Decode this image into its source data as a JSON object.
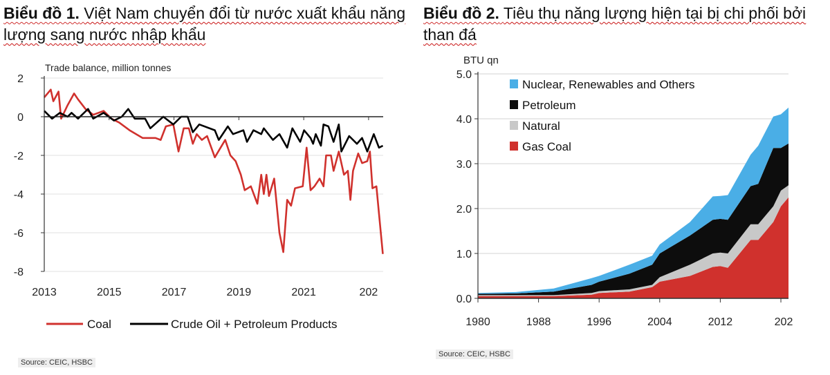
{
  "chart_data": [
    {
      "type": "line",
      "title_prefix": "Biểu đồ 1.",
      "title": "Việt Nam chuyển đổi từ nước xuất khẩu năng lượng sang nước nhập khẩu",
      "ylabel": "Trade balance, million tonnes",
      "xlabel": "",
      "ylim": [
        -8,
        2
      ],
      "xlim": [
        2013,
        2023.45
      ],
      "yticks": [
        "2",
        "0",
        "-2",
        "-4",
        "-6",
        "-8"
      ],
      "xticks": [
        "2013",
        "2015",
        "2017",
        "2019",
        "2021",
        "202"
      ],
      "grid": true,
      "legend": "bottom",
      "source": "Source: CEIC, HSBC",
      "series": [
        {
          "name": "Coal",
          "color": "#d0312d",
          "x": [
            2013.0,
            2013.2,
            2013.28,
            2013.44,
            2013.52,
            2013.72,
            2013.92,
            2014.04,
            2014.27,
            2014.51,
            2014.83,
            2015.07,
            2015.31,
            2015.63,
            2016.03,
            2016.43,
            2016.59,
            2016.75,
            2016.98,
            2017.14,
            2017.3,
            2017.46,
            2017.58,
            2017.7,
            2017.86,
            2018.02,
            2018.26,
            2018.58,
            2018.74,
            2018.9,
            2019.06,
            2019.18,
            2019.37,
            2019.57,
            2019.69,
            2019.77,
            2019.85,
            2019.93,
            2020.09,
            2020.25,
            2020.37,
            2020.49,
            2020.61,
            2020.73,
            2020.97,
            2021.09,
            2021.21,
            2021.33,
            2021.49,
            2021.61,
            2021.69,
            2021.84,
            2021.92,
            2022.08,
            2022.24,
            2022.36,
            2022.44,
            2022.52,
            2022.68,
            2022.8,
            2022.96,
            2023.04,
            2023.12,
            2023.24,
            2023.32,
            2023.44
          ],
          "y": [
            1.0,
            1.4,
            0.8,
            1.3,
            -0.1,
            0.6,
            1.2,
            0.9,
            0.4,
            0.1,
            0.3,
            -0.1,
            -0.3,
            -0.7,
            -1.1,
            -1.1,
            -1.2,
            -0.5,
            -0.4,
            -1.8,
            -0.6,
            -0.6,
            -1.4,
            -0.9,
            -1.2,
            -1.0,
            -2.1,
            -1.2,
            -2.0,
            -2.3,
            -3.0,
            -3.8,
            -3.6,
            -4.5,
            -3.0,
            -4.0,
            -3.0,
            -4.1,
            -3.2,
            -6.0,
            -7.0,
            -4.3,
            -4.6,
            -3.7,
            -3.6,
            -1.6,
            -3.8,
            -3.6,
            -3.2,
            -3.6,
            -2.0,
            -2.0,
            -2.8,
            -1.8,
            -3.0,
            -2.8,
            -4.3,
            -2.8,
            -1.9,
            -2.4,
            -2.3,
            -1.8,
            -3.7,
            -3.6,
            -5.0,
            -7.1
          ]
        },
        {
          "name": "Crude Oil + Petroleum Products",
          "color": "#000000",
          "x": [
            2013.0,
            2013.24,
            2013.48,
            2013.72,
            2013.84,
            2014.04,
            2014.35,
            2014.51,
            2014.83,
            2015.15,
            2015.39,
            2015.59,
            2015.79,
            2016.11,
            2016.27,
            2016.67,
            2016.98,
            2017.22,
            2017.42,
            2017.58,
            2017.78,
            2018.26,
            2018.38,
            2018.66,
            2018.82,
            2019.14,
            2019.25,
            2019.45,
            2019.69,
            2019.77,
            2020.05,
            2020.25,
            2020.49,
            2020.65,
            2020.89,
            2021.01,
            2021.21,
            2021.29,
            2021.37,
            2021.53,
            2021.61,
            2021.76,
            2021.92,
            2022.08,
            2022.16,
            2022.4,
            2022.64,
            2022.8,
            2022.96,
            2023.16,
            2023.32,
            2023.44
          ],
          "y": [
            0.3,
            -0.1,
            0.2,
            0.0,
            0.2,
            -0.1,
            0.4,
            -0.1,
            0.2,
            -0.2,
            0.0,
            0.4,
            -0.1,
            -0.1,
            -0.6,
            0.0,
            -0.4,
            0.0,
            0.0,
            -0.8,
            -0.4,
            -0.7,
            -1.2,
            -0.5,
            -0.9,
            -0.7,
            -1.3,
            -0.7,
            -0.9,
            -0.6,
            -1.2,
            -0.9,
            -1.6,
            -0.6,
            -1.3,
            -0.7,
            -1.1,
            -1.4,
            -0.9,
            -1.5,
            -0.4,
            -0.5,
            -1.3,
            -0.4,
            -1.8,
            -1.0,
            -1.4,
            -1.1,
            -1.8,
            -0.9,
            -1.6,
            -1.5
          ]
        }
      ]
    },
    {
      "type": "area",
      "stacked": true,
      "title_prefix": "Biểu đồ 2.",
      "title": "Tiêu thụ năng lượng hiện tại bị chi phối bởi than đá",
      "ylabel": "BTU qn",
      "xlabel": "",
      "ylim": [
        0,
        5
      ],
      "xlim": [
        1980,
        2021
      ],
      "yticks": [
        "5.0",
        "4.0",
        "3.0",
        "2.0",
        "1.0",
        "0.0"
      ],
      "xticks": [
        "1980",
        "1988",
        "1996",
        "2004",
        "2012",
        "202"
      ],
      "grid": true,
      "legend": "top-left",
      "source": "Source: CEIC, HSBC",
      "x": [
        1980,
        1985,
        1990,
        1995,
        1996,
        2000,
        2003,
        2004,
        2008,
        2011,
        2012,
        2013,
        2016,
        2017,
        2019,
        2020,
        2021
      ],
      "series": [
        {
          "name": "Gas Coal",
          "color": "#d0312d",
          "values": [
            0.05,
            0.05,
            0.05,
            0.08,
            0.12,
            0.15,
            0.25,
            0.37,
            0.5,
            0.7,
            0.72,
            0.68,
            1.3,
            1.3,
            1.7,
            2.05,
            2.25
          ]
        },
        {
          "name": "Natural",
          "color": "#c8c8c8",
          "values": [
            0.02,
            0.02,
            0.02,
            0.04,
            0.04,
            0.05,
            0.05,
            0.1,
            0.25,
            0.3,
            0.3,
            0.32,
            0.35,
            0.35,
            0.35,
            0.35,
            0.27
          ]
        },
        {
          "name": "Petroleum",
          "color": "#0d0d0d",
          "values": [
            0.03,
            0.04,
            0.08,
            0.18,
            0.21,
            0.35,
            0.45,
            0.53,
            0.65,
            0.75,
            0.75,
            0.75,
            0.85,
            0.9,
            1.3,
            0.95,
            0.93
          ]
        },
        {
          "name": "Nuclear, Renewables and Others",
          "color": "#4aaee6",
          "values": [
            0.02,
            0.03,
            0.07,
            0.15,
            0.13,
            0.2,
            0.2,
            0.2,
            0.3,
            0.52,
            0.51,
            0.55,
            0.7,
            0.85,
            0.7,
            0.75,
            0.8
          ]
        }
      ],
      "legend_order": [
        "Nuclear, Renewables and Others",
        "Petroleum",
        "Natural",
        "Gas Coal"
      ]
    }
  ]
}
